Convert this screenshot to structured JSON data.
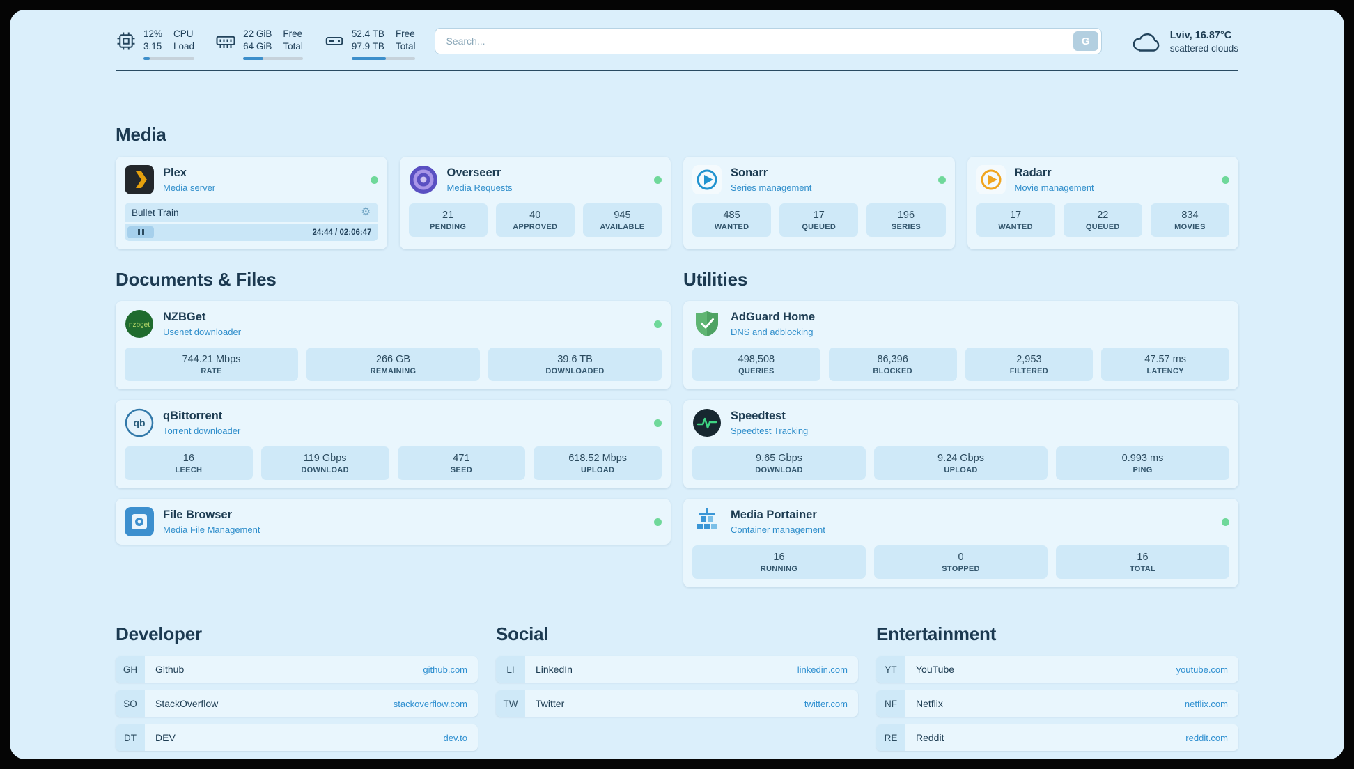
{
  "colors": {
    "page_bg": "#dbeffb",
    "card_bg": "#e9f6fd",
    "stat_bg": "#cfe9f8",
    "text_dark": "#1d3c52",
    "subtitle_blue": "#2f8ecb",
    "link_blue": "#2e8fd0",
    "status_green": "#6fd89a",
    "bar_blue": "#3d8fcb"
  },
  "topbar": {
    "cpu": {
      "value_top": "12%",
      "label_top": "CPU",
      "value_bottom": "3.15",
      "label_bottom": "Load",
      "bar_percent": 12
    },
    "memory": {
      "value_top": "22 GiB",
      "label_top": "Free",
      "value_bottom": "64 GiB",
      "label_bottom": "Total",
      "bar_percent": 34
    },
    "disk": {
      "value_top": "52.4 TB",
      "label_top": "Free",
      "value_bottom": "97.9 TB",
      "label_bottom": "Total",
      "bar_percent": 54
    },
    "search": {
      "placeholder": "Search...",
      "button_label": "G"
    },
    "weather": {
      "location": "Lviv, 16.87°C",
      "condition": "scattered clouds"
    }
  },
  "media": {
    "heading": "Media",
    "plex": {
      "title": "Plex",
      "subtitle": "Media server",
      "status": "online",
      "now_playing": "Bullet Train",
      "gear_icon": "⚙",
      "time": "24:44 / 02:06:47"
    },
    "overseerr": {
      "title": "Overseerr",
      "subtitle": "Media Requests",
      "status": "online",
      "stats": [
        {
          "value": "21",
          "label": "PENDING"
        },
        {
          "value": "40",
          "label": "APPROVED"
        },
        {
          "value": "945",
          "label": "AVAILABLE"
        }
      ]
    },
    "sonarr": {
      "title": "Sonarr",
      "subtitle": "Series management",
      "status": "online",
      "stats": [
        {
          "value": "485",
          "label": "WANTED"
        },
        {
          "value": "17",
          "label": "QUEUED"
        },
        {
          "value": "196",
          "label": "SERIES"
        }
      ]
    },
    "radarr": {
      "title": "Radarr",
      "subtitle": "Movie management",
      "status": "online",
      "stats": [
        {
          "value": "17",
          "label": "WANTED"
        },
        {
          "value": "22",
          "label": "QUEUED"
        },
        {
          "value": "834",
          "label": "MOVIES"
        }
      ]
    }
  },
  "documents": {
    "heading": "Documents & Files",
    "nzbget": {
      "title": "NZBGet",
      "subtitle": "Usenet downloader",
      "status": "online",
      "stats": [
        {
          "value": "744.21 Mbps",
          "label": "RATE"
        },
        {
          "value": "266 GB",
          "label": "REMAINING"
        },
        {
          "value": "39.6 TB",
          "label": "DOWNLOADED"
        }
      ]
    },
    "qbittorrent": {
      "title": "qBittorrent",
      "subtitle": "Torrent downloader",
      "status": "online",
      "stats": [
        {
          "value": "16",
          "label": "LEECH"
        },
        {
          "value": "119 Gbps",
          "label": "DOWNLOAD"
        },
        {
          "value": "471",
          "label": "SEED"
        },
        {
          "value": "618.52 Mbps",
          "label": "UPLOAD"
        }
      ]
    },
    "filebrowser": {
      "title": "File Browser",
      "subtitle": "Media File Management",
      "status": "online"
    }
  },
  "utilities": {
    "heading": "Utilities",
    "adguard": {
      "title": "AdGuard Home",
      "subtitle": "DNS and adblocking",
      "stats": [
        {
          "value": "498,508",
          "label": "QUERIES"
        },
        {
          "value": "86,396",
          "label": "BLOCKED"
        },
        {
          "value": "2,953",
          "label": "FILTERED"
        },
        {
          "value": "47.57 ms",
          "label": "LATENCY"
        }
      ]
    },
    "speedtest": {
      "title": "Speedtest",
      "subtitle": "Speedtest Tracking",
      "stats": [
        {
          "value": "9.65 Gbps",
          "label": "DOWNLOAD"
        },
        {
          "value": "9.24 Gbps",
          "label": "UPLOAD"
        },
        {
          "value": "0.993 ms",
          "label": "PING"
        }
      ]
    },
    "portainer": {
      "title": "Media Portainer",
      "subtitle": "Container management",
      "status": "online",
      "stats": [
        {
          "value": "16",
          "label": "RUNNING"
        },
        {
          "value": "0",
          "label": "STOPPED"
        },
        {
          "value": "16",
          "label": "TOTAL"
        }
      ]
    }
  },
  "bookmarks": {
    "developer": {
      "heading": "Developer",
      "items": [
        {
          "abbr": "GH",
          "name": "Github",
          "link": "github.com"
        },
        {
          "abbr": "SO",
          "name": "StackOverflow",
          "link": "stackoverflow.com"
        },
        {
          "abbr": "DT",
          "name": "DEV",
          "link": "dev.to"
        }
      ]
    },
    "social": {
      "heading": "Social",
      "items": [
        {
          "abbr": "LI",
          "name": "LinkedIn",
          "link": "linkedin.com"
        },
        {
          "abbr": "TW",
          "name": "Twitter",
          "link": "twitter.com"
        }
      ]
    },
    "entertainment": {
      "heading": "Entertainment",
      "items": [
        {
          "abbr": "YT",
          "name": "YouTube",
          "link": "youtube.com"
        },
        {
          "abbr": "NF",
          "name": "Netflix",
          "link": "netflix.com"
        },
        {
          "abbr": "RE",
          "name": "Reddit",
          "link": "reddit.com"
        }
      ]
    }
  }
}
